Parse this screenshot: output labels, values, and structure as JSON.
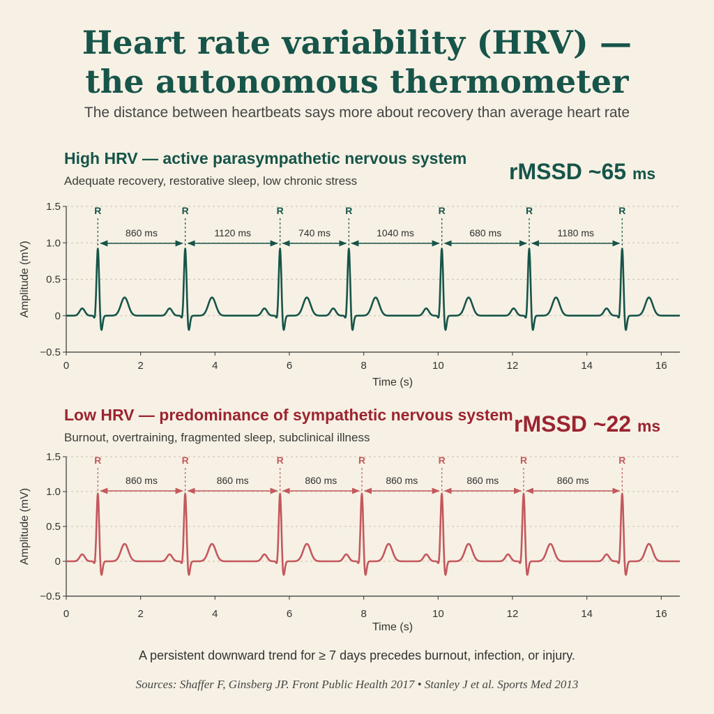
{
  "header": {
    "title_line1": "Heart rate variability (HRV) —",
    "title_line2": "the autonomous thermometer",
    "subtitle": "The distance between heartbeats says more about recovery than average heart rate"
  },
  "footer": {
    "note": "A persistent downward trend for ≥ 7 days precedes burnout, infection, or injury.",
    "sources": "Sources: Shaffer F, Ginsberg JP. Front Public Health 2017 • Stanley J et al. Sports Med 2013"
  },
  "colors": {
    "high": "#17544a",
    "low": "#c4585e",
    "low_text": "#9b2430",
    "axis": "#333333",
    "grid": "#c9bfae"
  },
  "chart_data": [
    {
      "type": "line",
      "title": "High HRV — active parasympathetic nervous system",
      "subtitle": "Adequate recovery, restorative sleep, low chronic stress",
      "metric_label": "rMSSD ~65",
      "metric_unit": "ms",
      "xlabel": "Time (s)",
      "ylabel": "Amplitude (mV)",
      "xlim": [
        0,
        16.5
      ],
      "ylim": [
        -0.5,
        1.5
      ],
      "xticks": [
        0,
        2,
        4,
        6,
        8,
        10,
        12,
        14,
        16
      ],
      "yticks": [
        1.5,
        1.0,
        0.5,
        0,
        -0.5
      ],
      "ytick_labels": [
        "1.5",
        "1.0",
        "0.5",
        "0",
        "−0.5"
      ],
      "grid": "horizontal dashed",
      "r_peak_label": "R",
      "r_peaks": [
        0.85,
        3.2,
        5.75,
        7.6,
        10.1,
        12.45,
        14.95
      ],
      "r_amplitude": 0.93,
      "rr_intervals": [
        "860 ms",
        "1120 ms",
        "740 ms",
        "1040 ms",
        "680 ms",
        "1180 ms"
      ]
    },
    {
      "type": "line",
      "title": "Low HRV — predominance of sympathetic nervous system",
      "subtitle": "Burnout, overtraining, fragmented sleep, subclinical illness",
      "metric_label": "rMSSD ~22",
      "metric_unit": "ms",
      "xlabel": "Time (s)",
      "ylabel": "Amplitude (mV)",
      "xlim": [
        0,
        16.5
      ],
      "ylim": [
        -0.5,
        1.5
      ],
      "xticks": [
        0,
        2,
        4,
        6,
        8,
        10,
        12,
        14,
        16
      ],
      "yticks": [
        1.5,
        1.0,
        0.5,
        0,
        -0.5
      ],
      "ytick_labels": [
        "1.5",
        "1.0",
        "0.5",
        "0",
        "−0.5"
      ],
      "grid": "horizontal dashed",
      "r_peak_label": "R",
      "r_peaks": [
        0.85,
        3.2,
        5.75,
        7.95,
        10.1,
        12.3,
        14.95
      ],
      "r_amplitude": 0.98,
      "rr_intervals": [
        "860 ms",
        "860 ms",
        "860 ms",
        "860 ms",
        "860 ms",
        "860 ms"
      ]
    }
  ]
}
